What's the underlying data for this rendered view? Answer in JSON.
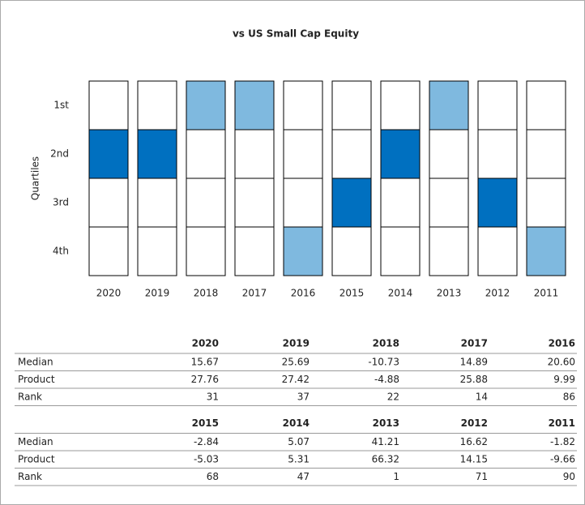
{
  "chart_data": {
    "type": "quartile",
    "title": "vs US Small Cap Equity",
    "y_label": "Quartiles",
    "categories": [
      "2020",
      "2019",
      "2018",
      "2017",
      "2016",
      "2015",
      "2014",
      "2013",
      "2012",
      "2011"
    ],
    "values": [
      2,
      2,
      1,
      1,
      4,
      3,
      2,
      1,
      3,
      4
    ],
    "colors": [
      "#0070c0",
      "#0070c0",
      "#7fb9df",
      "#7fb9df",
      "#7fb9df",
      "#0070c0",
      "#0070c0",
      "#7fb9df",
      "#0070c0",
      "#7fb9df"
    ],
    "ylim": [
      4.5,
      0.5
    ],
    "yticks": [
      {
        "value": 1,
        "label": "1st"
      },
      {
        "value": 2,
        "label": "2nd"
      },
      {
        "value": 3,
        "label": "3rd"
      },
      {
        "value": 4,
        "label": "4th"
      }
    ]
  },
  "tables": [
    {
      "columns": [
        "2020",
        "2019",
        "2018",
        "2017",
        "2016"
      ],
      "rows": [
        {
          "label": "Median",
          "cells": [
            "15.67",
            "25.69",
            "-10.73",
            "14.89",
            "20.60"
          ]
        },
        {
          "label": "Product",
          "cells": [
            "27.76",
            "27.42",
            "-4.88",
            "25.88",
            "9.99"
          ]
        },
        {
          "label": "Rank",
          "cells": [
            "31",
            "37",
            "22",
            "14",
            "86"
          ]
        }
      ]
    },
    {
      "columns": [
        "2015",
        "2014",
        "2013",
        "2012",
        "2011"
      ],
      "rows": [
        {
          "label": "Median",
          "cells": [
            "-2.84",
            "5.07",
            "41.21",
            "16.62",
            "-1.82"
          ]
        },
        {
          "label": "Product",
          "cells": [
            "-5.03",
            "5.31",
            "66.32",
            "14.15",
            "-9.66"
          ]
        },
        {
          "label": "Rank",
          "cells": [
            "68",
            "47",
            "1",
            "71",
            "90"
          ]
        }
      ]
    }
  ]
}
